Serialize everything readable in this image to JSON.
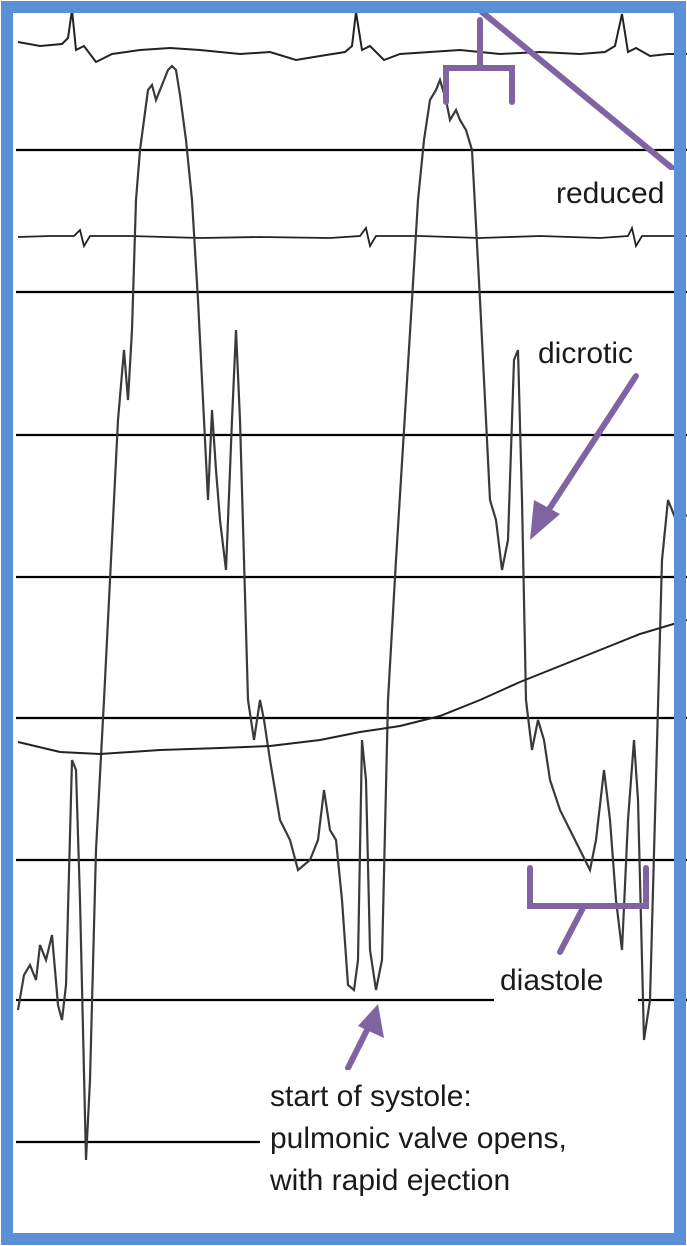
{
  "annotations": {
    "reduced": "reduced",
    "dicrotic": "dicrotic",
    "diastole": "diastole",
    "systole_line1": "start of systole:",
    "systole_line2": "pulmonic valve opens,",
    "systole_line3": "with rapid ejection"
  },
  "colors": {
    "frame": "#5b8fd6",
    "annotation": "#8064a2",
    "trace": "#3a3a3a",
    "baseline": "#000000"
  }
}
